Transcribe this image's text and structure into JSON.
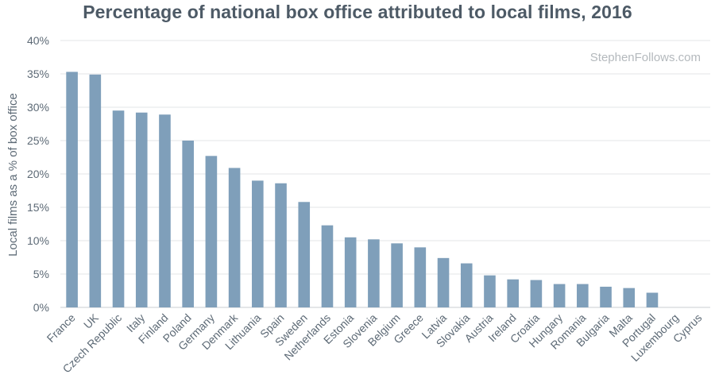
{
  "chart_data": {
    "type": "bar",
    "title": "Percentage of national box office attributed to local films, 2016",
    "ylabel": "Local films as a % of box office",
    "xlabel": "",
    "ylim": [
      0,
      40
    ],
    "yticks": [
      "0%",
      "5%",
      "10%",
      "15%",
      "20%",
      "25%",
      "30%",
      "35%",
      "40%"
    ],
    "grid": true,
    "bar_color": "#7f9fba",
    "categories": [
      "France",
      "UK",
      "Czech Republic",
      "Italy",
      "Finland",
      "Poland",
      "Germany",
      "Denmark",
      "Lithuania",
      "Spain",
      "Sweden",
      "Netherlands",
      "Estonia",
      "Slovenia",
      "Belgium",
      "Greece",
      "Latvia",
      "Slovakia",
      "Austria",
      "Ireland",
      "Croatia",
      "Hungary",
      "Romania",
      "Bulgaria",
      "Malta",
      "Portugal",
      "Luxembourg",
      "Cyprus"
    ],
    "values": [
      35.3,
      34.9,
      29.5,
      29.2,
      28.9,
      25.0,
      22.7,
      20.9,
      19.0,
      18.6,
      15.8,
      12.3,
      10.5,
      10.2,
      9.6,
      9.0,
      7.4,
      6.6,
      4.8,
      4.2,
      4.1,
      3.5,
      3.5,
      3.1,
      2.9,
      2.2,
      0,
      0
    ]
  },
  "watermark": "StephenFollows.com"
}
